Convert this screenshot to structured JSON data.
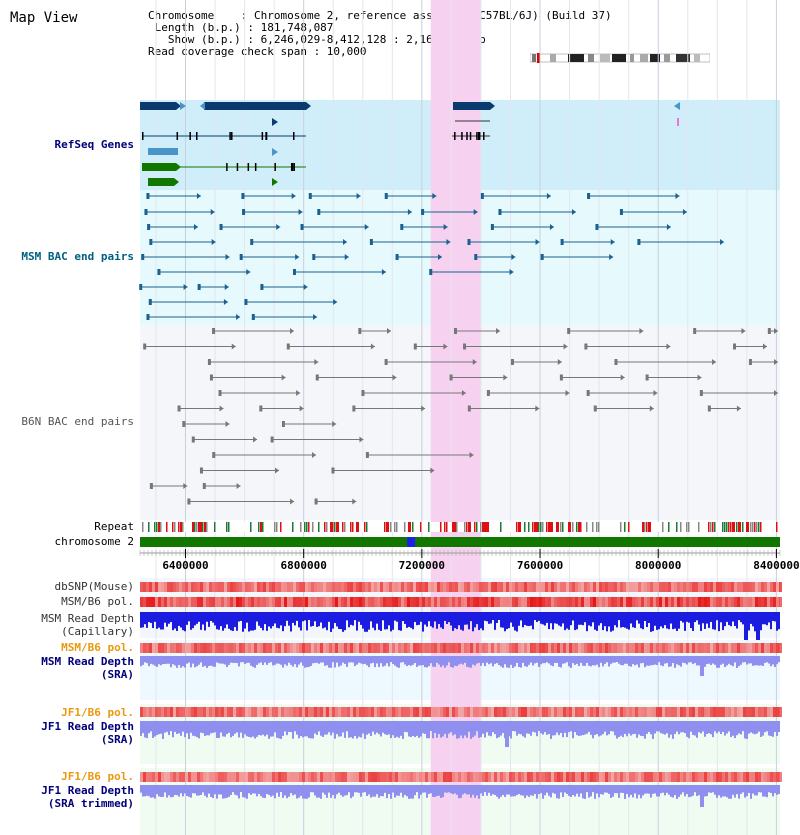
{
  "title": "Map View",
  "info": {
    "chromosome": "Chromosome    : Chromosome 2, reference assembly (C57BL/6J) (Build 37)",
    "length": " Length (b.p.) : 181,748,087",
    "show": "   Show (b.p.) : 6,246,029-8,412,128 : 2,166,100 bp",
    "coverage": "Read coverage check span : 10,000"
  },
  "labels": {
    "refseq": "RefSeq Genes",
    "msm_bac": "MSM BAC end pairs",
    "b6n_bac": "B6N BAC end pairs",
    "repeat": "Repeat",
    "chromosome": "chromosome 2",
    "dbsnp": "dbSNP(Mouse)",
    "msm_b6_pol": "MSM/B6 pol.",
    "msm_read_depth_cap_1": "MSM Read Depth",
    "msm_read_depth_cap_2": "(Capillary)",
    "msm_b6_pol_sra": "MSM/B6 pol.",
    "msm_read_depth_sra_1": "MSM Read Depth",
    "msm_read_depth_sra_2": "(SRA)",
    "jf1_b6_pol": "JF1/B6 pol.",
    "jf1_read_depth_1": "JF1 Read Depth",
    "jf1_read_depth_2": "(SRA)",
    "jf1_b6_pol_trim": "JF1/B6 pol.",
    "jf1_read_depth_trim_1": "JF1 Read Depth",
    "jf1_read_depth_trim_2": "(SRA trimmed)"
  },
  "axis": {
    "start": 6246029,
    "end": 8412128,
    "ticks": [
      "6400000",
      "6800000",
      "7200000",
      "7600000",
      "8000000",
      "8400000"
    ],
    "tick_values": [
      6400000,
      6800000,
      7200000,
      7600000,
      8000000,
      8400000
    ]
  },
  "highlight": {
    "from": 7230000,
    "to": 7400000
  },
  "colors": {
    "refseq_bg": "#cfeefa",
    "msm_bg": "#e6fafd",
    "b6n_bg": "#f4f6fa",
    "highlight": "#f7d2f0",
    "refseq_dark": "#0b3a6e",
    "refseq_green": "#117700",
    "refseq_light": "#4a95c8",
    "msm_line": "#1a6090",
    "b6n_line": "#777777",
    "chrom_green": "#117700",
    "chrom_blue": "#1b22e8",
    "label_blue": "#00007a",
    "label_orange": "#e89a10",
    "label_teal": "#006080",
    "depth_blue": "#1c1ce0",
    "depth_light": "#8f8ff0"
  },
  "icons": {
    "ideogram": "chromosome-ideogram-icon"
  }
}
